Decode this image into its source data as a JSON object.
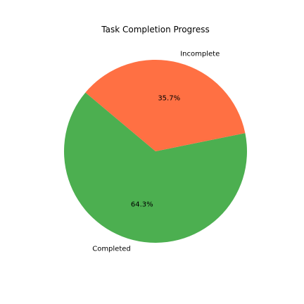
{
  "chart_data": {
    "type": "pie",
    "title": "Task Completion Progress",
    "categories": [
      "Completed",
      "Incomplete"
    ],
    "values": [
      64.3,
      35.7
    ],
    "percent_labels": [
      "64.3%",
      "35.7%"
    ],
    "colors": [
      "#4caf50",
      "#ff7043"
    ],
    "start_angle_deg": 140,
    "direction": "counterclockwise",
    "legend": "none"
  }
}
